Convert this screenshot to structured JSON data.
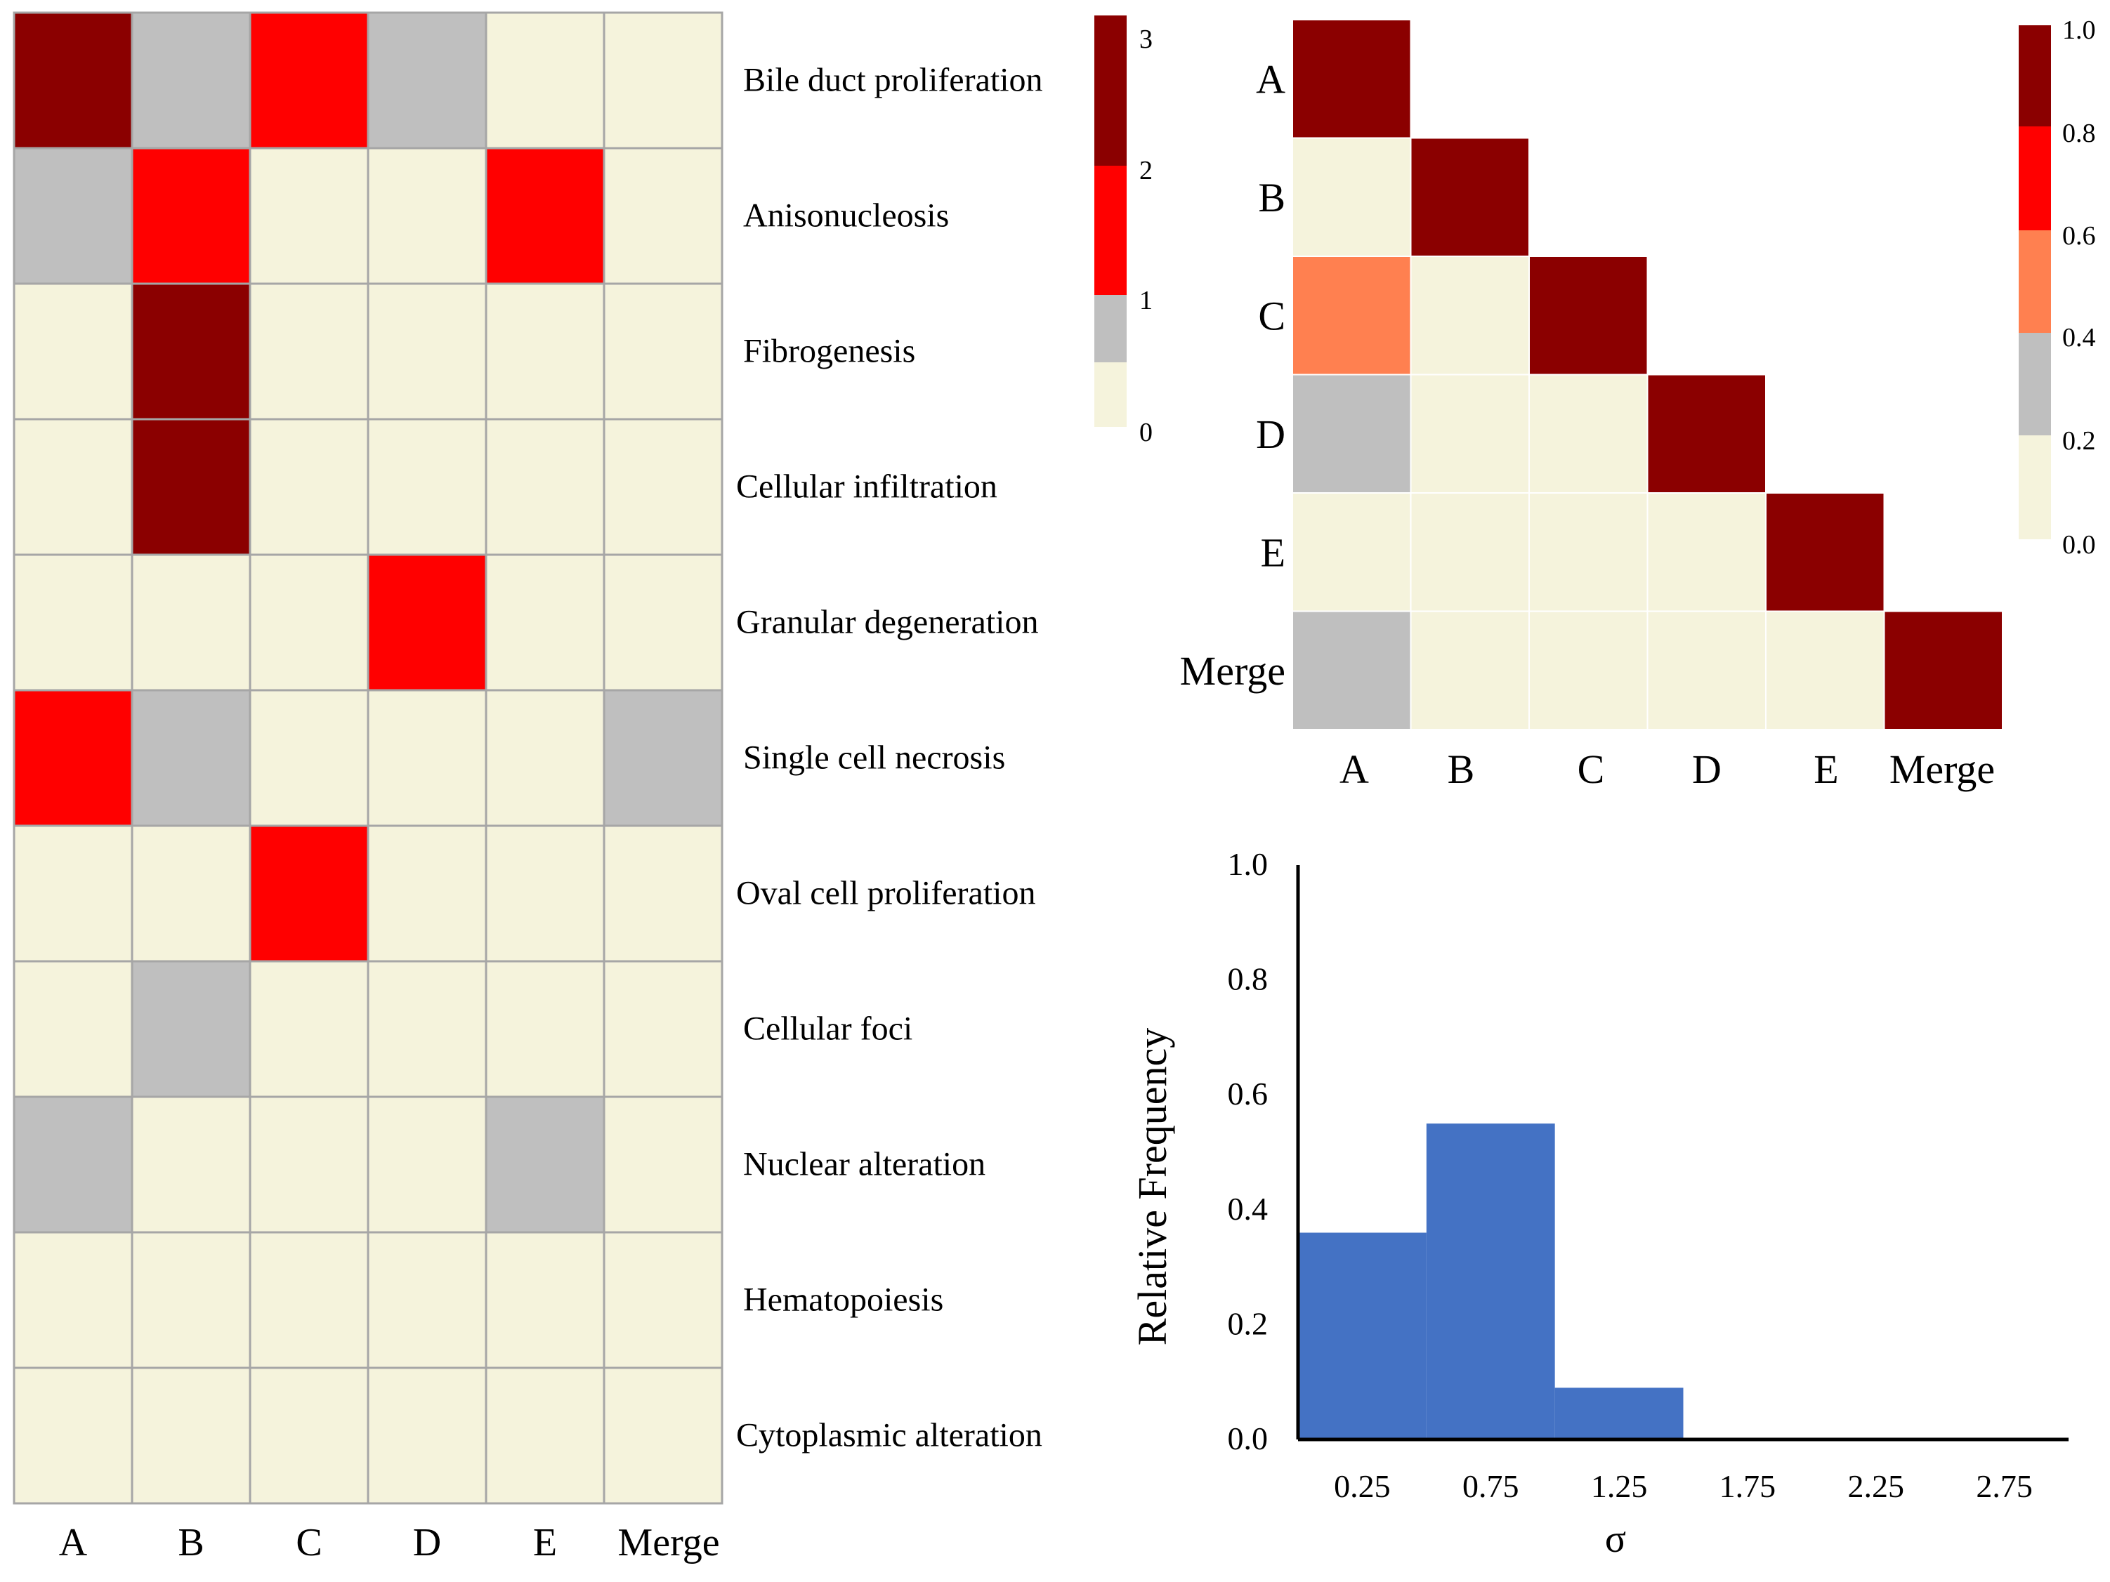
{
  "chart_data": [
    {
      "type": "heatmap",
      "title": "",
      "columns": [
        "A",
        "B",
        "C",
        "D",
        "E",
        "Merge"
      ],
      "rows": [
        "Bile duct proliferation",
        "Anisonucleosis",
        "Fibrogenesis",
        "Cellular infiltration",
        "Granular degeneration",
        "Single cell necrosis",
        "Oval cell proliferation",
        "Cellular foci",
        "Nuclear alteration",
        "Hematopoiesis",
        "Cytoplasmic alteration"
      ],
      "values": [
        [
          3,
          1,
          2,
          1,
          0,
          0
        ],
        [
          1,
          2,
          0,
          0,
          2,
          0
        ],
        [
          0,
          3,
          0,
          0,
          0,
          0
        ],
        [
          0,
          3,
          0,
          0,
          0,
          0
        ],
        [
          0,
          0,
          0,
          2,
          0,
          0
        ],
        [
          2,
          1,
          0,
          0,
          0,
          1
        ],
        [
          0,
          0,
          2,
          0,
          0,
          0
        ],
        [
          0,
          1,
          0,
          0,
          0,
          0
        ],
        [
          1,
          0,
          0,
          0,
          1,
          0
        ],
        [
          0,
          0,
          0,
          0,
          0,
          0
        ],
        [
          0,
          0,
          0,
          0,
          0,
          0
        ]
      ],
      "colorbar": {
        "ticks": [
          "3",
          "2",
          "1",
          "0"
        ],
        "colors": [
          "#8b0000",
          "#ff0000",
          "#bfbfbf",
          "#f5f3dc"
        ]
      },
      "palette": {
        "0": "#f5f3dc",
        "1": "#bfbfbf",
        "2": "#ff0000",
        "3": "#8b0000"
      }
    },
    {
      "type": "heatmap",
      "title": "",
      "labels": [
        "A",
        "B",
        "C",
        "D",
        "E",
        "Merge"
      ],
      "lower_triangle_values": [
        [
          1.0
        ],
        [
          0.1,
          1.0
        ],
        [
          0.5,
          0.1,
          1.0
        ],
        [
          0.3,
          0.1,
          0.1,
          1.0
        ],
        [
          0.1,
          0.1,
          0.1,
          0.1,
          1.0
        ],
        [
          0.3,
          0.1,
          0.1,
          0.1,
          0.1,
          1.0
        ]
      ],
      "colorbar": {
        "ticks": [
          "1.0",
          "0.8",
          "0.6",
          "0.4",
          "0.2",
          "0.0"
        ],
        "colors": [
          "#8b0000",
          "#ff0000",
          "#ff8050",
          "#bfbfbf",
          "#f5f3dc"
        ]
      }
    },
    {
      "type": "bar",
      "title": "",
      "categories": [
        "0.25",
        "0.75",
        "1.25",
        "1.75",
        "2.25",
        "2.75"
      ],
      "values": [
        0.36,
        0.55,
        0.09,
        0.0,
        0.0,
        0.0
      ],
      "xlabel": "σ",
      "ylabel": "Relative Frequency",
      "ylim": [
        0,
        1.0
      ],
      "yticks": [
        "0.0",
        "0.2",
        "0.4",
        "0.6",
        "0.8",
        "1.0"
      ],
      "color": "#4472c4"
    }
  ]
}
